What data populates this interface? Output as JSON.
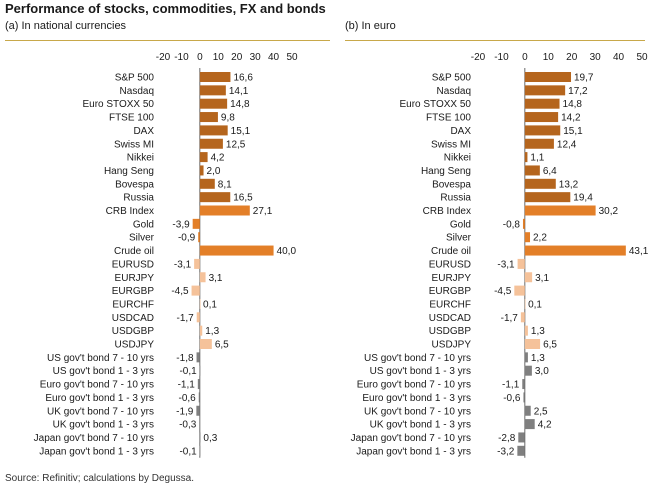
{
  "title": "Performance of stocks, commodities, FX and bonds",
  "source": "Source: Refinitiv; calculations by Degussa.",
  "colors": {
    "stocks": "#b5651d",
    "commodity_index": "#e37f28",
    "commodities": "#e37f28",
    "fx": "#f5c29a",
    "bonds": "#7f7f7f",
    "rule": "#c8a84a"
  },
  "chart_data": [
    {
      "type": "bar",
      "orientation": "horizontal",
      "subtitle": "(a) In national currencies",
      "xlim": [
        -20,
        50
      ],
      "xticks": [
        "-20",
        "-10",
        "0",
        "10",
        "20",
        "30",
        "40",
        "50"
      ],
      "categories": [
        "S&P 500",
        "Nasdaq",
        "Euro STOXX 50",
        "FTSE 100",
        "DAX",
        "Swiss MI",
        "Nikkei",
        "Hang Seng",
        "Bovespa",
        "Russia",
        "CRB Index",
        "Gold",
        "Silver",
        "Crude oil",
        "EURUSD",
        "EURJPY",
        "EURGBP",
        "EURCHF",
        "USDCAD",
        "USDGBP",
        "USDJPY",
        "US gov't bond 7 - 10 yrs",
        "US gov't bond 1 - 3 yrs",
        "Euro gov't bond 7 - 10 yrs",
        "Euro gov't bond 1 - 3 yrs",
        "UK gov't bond 7 - 10 yrs",
        "UK gov't bond 1 - 3 yrs",
        "Japan gov't bond 7 - 10 yrs",
        "Japan gov't bond 1 - 3 yrs"
      ],
      "values": [
        16.6,
        14.1,
        14.8,
        9.8,
        15.1,
        12.5,
        4.2,
        2.0,
        8.1,
        16.5,
        27.1,
        -3.9,
        -0.9,
        40.0,
        -3.1,
        3.1,
        -4.5,
        0.1,
        -1.7,
        1.3,
        6.5,
        -1.8,
        -0.1,
        -1.1,
        -0.6,
        -1.9,
        -0.3,
        0.3,
        -0.1
      ],
      "labels": [
        "16,6",
        "14,1",
        "14,8",
        "9,8",
        "15,1",
        "12,5",
        "4,2",
        "2,0",
        "8,1",
        "16,5",
        "27,1",
        "-3,9",
        "-0,9",
        "40,0",
        "-3,1",
        "3,1",
        "-4,5",
        "0,1",
        "-1,7",
        "1,3",
        "6,5",
        "-1,8",
        "-0,1",
        "-1,1",
        "-0,6",
        "-1,9",
        "-0,3",
        "0,3",
        "-0,1"
      ],
      "groups": [
        "stocks",
        "stocks",
        "stocks",
        "stocks",
        "stocks",
        "stocks",
        "stocks",
        "stocks",
        "stocks",
        "stocks",
        "commodity_index",
        "commodities",
        "commodities",
        "commodities",
        "fx",
        "fx",
        "fx",
        "fx",
        "fx",
        "fx",
        "fx",
        "bonds",
        "bonds",
        "bonds",
        "bonds",
        "bonds",
        "bonds",
        "bonds",
        "bonds"
      ]
    },
    {
      "type": "bar",
      "orientation": "horizontal",
      "subtitle": "(b) In euro",
      "xlim": [
        -20,
        50
      ],
      "xticks": [
        "-20",
        "-10",
        "0",
        "10",
        "20",
        "30",
        "40",
        "50"
      ],
      "categories": [
        "S&P 500",
        "Nasdaq",
        "Euro STOXX 50",
        "FTSE 100",
        "DAX",
        "Swiss MI",
        "Nikkei",
        "Hang Seng",
        "Bovespa",
        "Russia",
        "CRB Index",
        "Gold",
        "Silver",
        "Crude oil",
        "EURUSD",
        "EURJPY",
        "EURGBP",
        "EURCHF",
        "USDCAD",
        "USDGBP",
        "USDJPY",
        "US gov't bond 7 - 10 yrs",
        "US gov't bond 1 - 3 yrs",
        "Euro gov't bond 7 - 10 yrs",
        "Euro gov't bond 1 - 3 yrs",
        "UK gov't bond 7 - 10 yrs",
        "UK gov't bond 1 - 3 yrs",
        "Japan gov't bond 7 - 10 yrs",
        "Japan gov't bond 1 - 3 yrs"
      ],
      "values": [
        19.7,
        17.2,
        14.8,
        14.2,
        15.1,
        12.4,
        1.1,
        6.4,
        13.2,
        19.4,
        30.2,
        -0.8,
        2.2,
        43.1,
        -3.1,
        3.1,
        -4.5,
        0.1,
        -1.7,
        1.3,
        6.5,
        1.3,
        3.0,
        -1.1,
        -0.6,
        2.5,
        4.2,
        -2.8,
        -3.2
      ],
      "labels": [
        "19,7",
        "17,2",
        "14,8",
        "14,2",
        "15,1",
        "12,4",
        "1,1",
        "6,4",
        "13,2",
        "19,4",
        "30,2",
        "-0,8",
        "2,2",
        "43,1",
        "-3,1",
        "3,1",
        "-4,5",
        "0,1",
        "-1,7",
        "1,3",
        "6,5",
        "1,3",
        "3,0",
        "-1,1",
        "-0,6",
        "2,5",
        "4,2",
        "-2,8",
        "-3,2"
      ],
      "groups": [
        "stocks",
        "stocks",
        "stocks",
        "stocks",
        "stocks",
        "stocks",
        "stocks",
        "stocks",
        "stocks",
        "stocks",
        "commodity_index",
        "commodities",
        "commodities",
        "commodities",
        "fx",
        "fx",
        "fx",
        "fx",
        "fx",
        "fx",
        "fx",
        "bonds",
        "bonds",
        "bonds",
        "bonds",
        "bonds",
        "bonds",
        "bonds",
        "bonds"
      ]
    }
  ]
}
